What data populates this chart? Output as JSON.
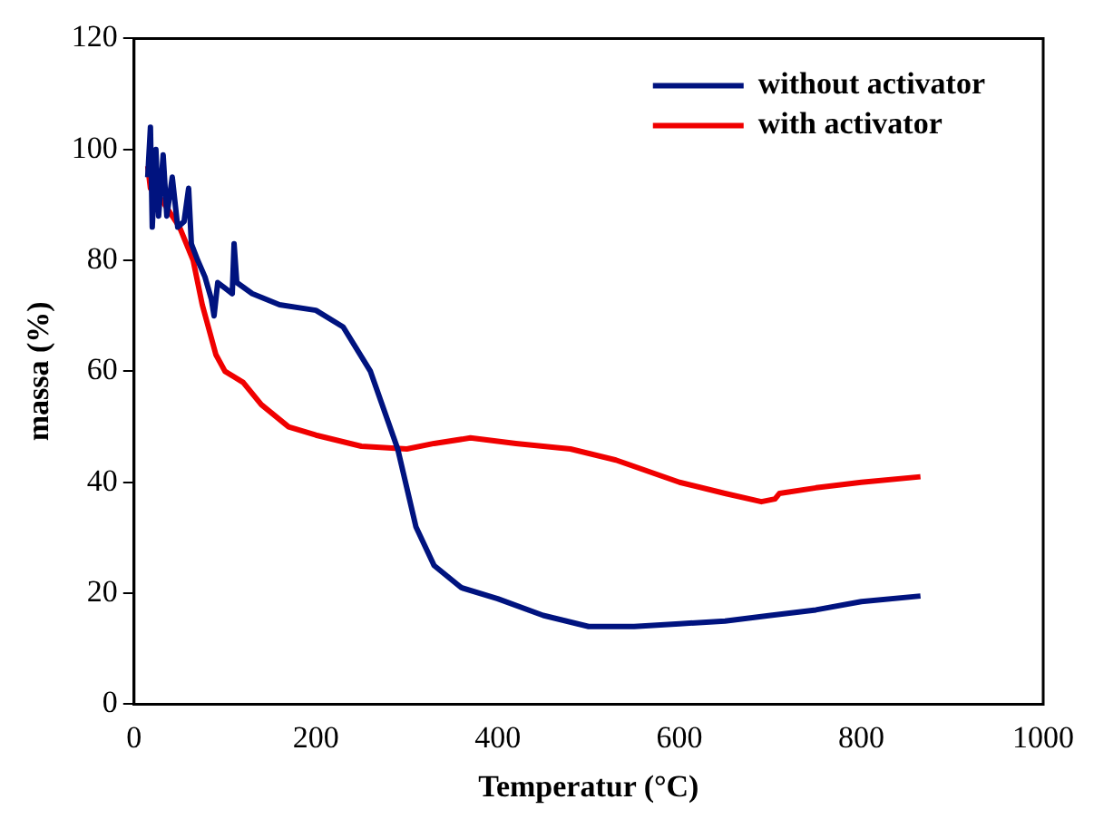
{
  "chart_data": {
    "type": "line",
    "xlabel": "Temperatur (°C)",
    "ylabel": "massa (%)",
    "xlim": [
      0,
      1000
    ],
    "xticks": [
      0,
      200,
      400,
      600,
      800,
      1000
    ],
    "ylim": [
      0,
      120
    ],
    "yticks": [
      0,
      20,
      40,
      60,
      80,
      100,
      120
    ],
    "grid": false,
    "legend": "top right",
    "marker": "none",
    "line_style": "solid",
    "series": [
      {
        "name": "without activator",
        "color": "#00137f",
        "x": [
          15,
          18,
          20,
          24,
          27,
          32,
          36,
          42,
          48,
          55,
          60,
          63,
          70,
          78,
          85,
          88,
          92,
          100,
          108,
          110,
          113,
          130,
          160,
          200,
          230,
          260,
          290,
          310,
          330,
          360,
          400,
          450,
          500,
          550,
          600,
          650,
          700,
          750,
          800,
          865
        ],
        "values": [
          95,
          104,
          86,
          100,
          88,
          99,
          88,
          95,
          86,
          87,
          93,
          83,
          80,
          77,
          73,
          70,
          76,
          75,
          74,
          83,
          76,
          74,
          72,
          71,
          68,
          60,
          46,
          32,
          25,
          21,
          19,
          16,
          14,
          14,
          14.5,
          15,
          16,
          17,
          18.5,
          19.5
        ]
      },
      {
        "name": "with activator",
        "color": "#f00000",
        "x": [
          15,
          18,
          30,
          50,
          65,
          75,
          90,
          100,
          120,
          140,
          170,
          200,
          250,
          300,
          330,
          370,
          420,
          480,
          530,
          600,
          650,
          690,
          705,
          710,
          750,
          800,
          865
        ],
        "values": [
          97,
          93,
          91,
          86,
          80,
          72,
          63,
          60,
          58,
          54,
          50,
          48.5,
          46.5,
          46,
          47,
          48,
          47,
          46,
          44,
          40,
          38,
          36.5,
          37,
          38,
          39,
          40,
          41
        ]
      }
    ]
  }
}
